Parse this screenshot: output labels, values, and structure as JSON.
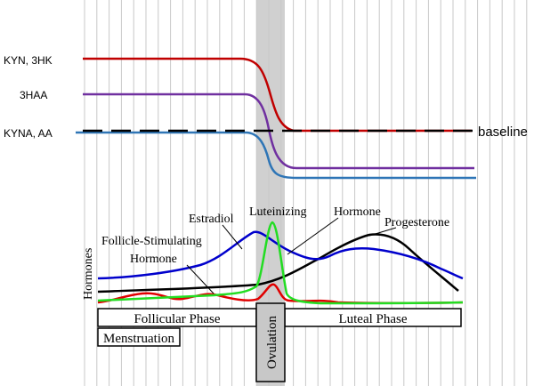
{
  "metabolite_labels": {
    "kyn_3hk": "KYN, 3HK",
    "three_haa": "3HAA",
    "kyna_aa": "KYNA, AA",
    "baseline": "baseline"
  },
  "hormone_labels": {
    "axis": "Hormones",
    "estradiol": "Estradiol",
    "lh_line1": "Luteinizing",
    "lh_line2": "Hormone",
    "progesterone": "Progesterone",
    "fsh_line1": "Follicle-Stimulating",
    "fsh_line2": "Hormone"
  },
  "phases": {
    "follicular": "Follicular Phase",
    "luteal": "Luteal Phase",
    "menstruation": "Menstruation",
    "ovulation": "Ovulation"
  },
  "colors": {
    "kyn_3hk": "#c00000",
    "three_haa": "#7030a0",
    "kyna_aa": "#2e75b6",
    "baseline": "#000000",
    "estradiol": "#0000cc",
    "lh": "#22dd22",
    "fsh": "#e00000",
    "progesterone": "#000000",
    "ovulation_band": "#c8c8c8",
    "grid": "#c8c8c8"
  }
}
